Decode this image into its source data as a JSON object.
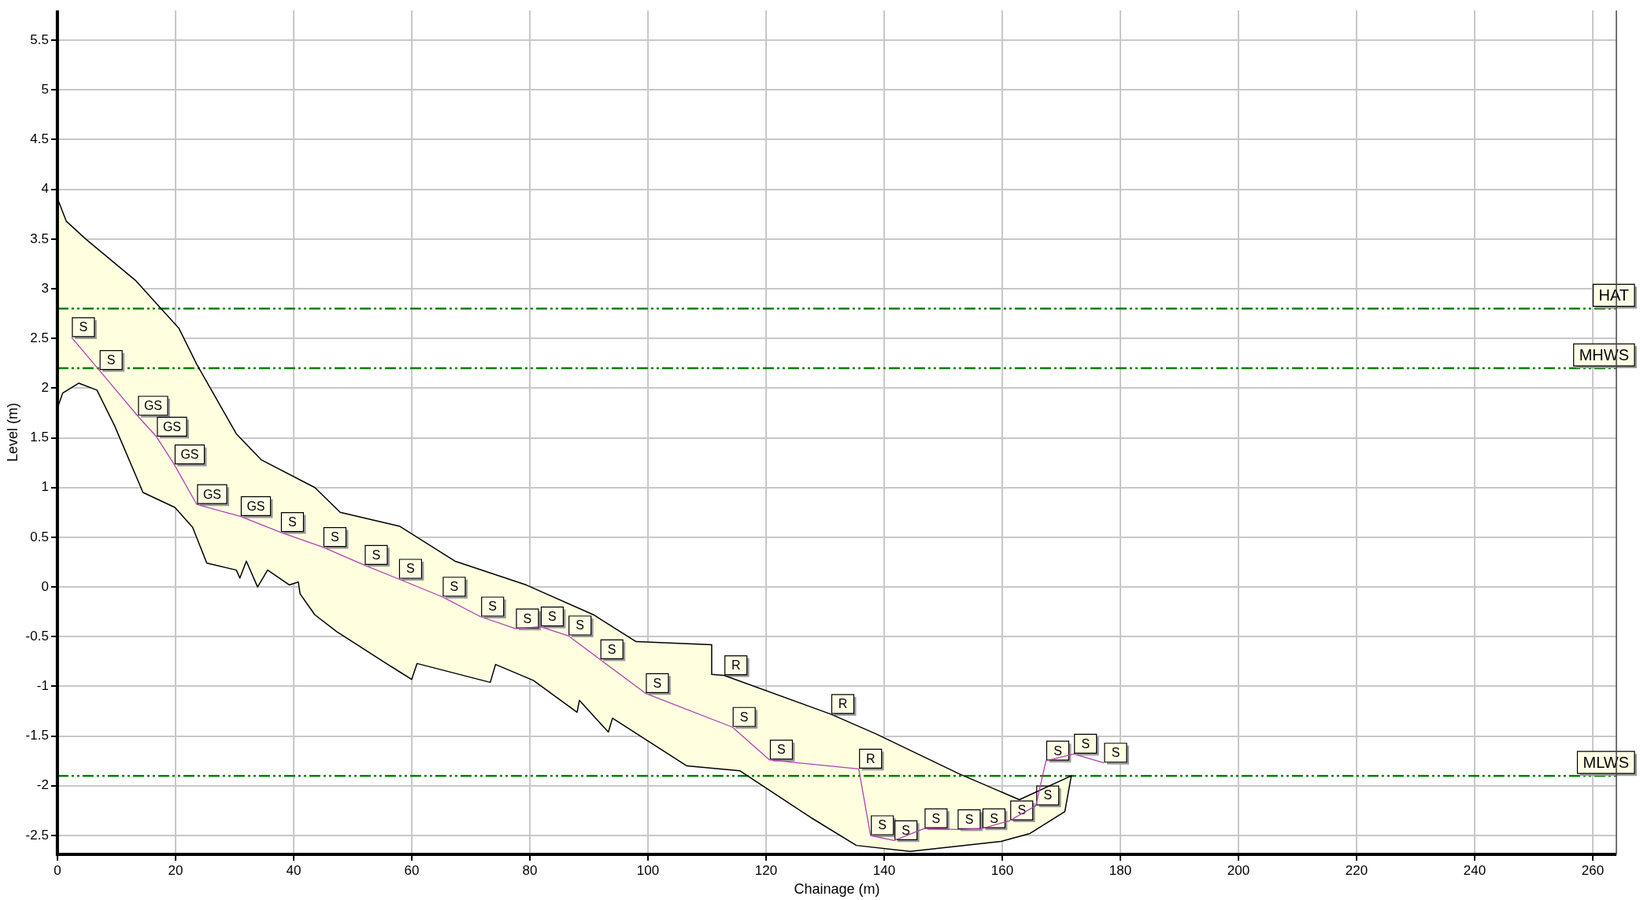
{
  "chart_data": {
    "type": "line",
    "xlabel": "Chainage (m)",
    "ylabel": "Level (m)",
    "xlim": [
      0,
      264
    ],
    "ylim": [
      -2.69,
      5.8
    ],
    "xticks": [
      0,
      20,
      40,
      60,
      80,
      100,
      120,
      140,
      160,
      180,
      200,
      220,
      240,
      260
    ],
    "yticks": [
      -2.5,
      -2,
      -1.5,
      -1,
      -0.5,
      0,
      0.5,
      1,
      1.5,
      2,
      2.5,
      3,
      3.5,
      4,
      4.5,
      5,
      5.5
    ],
    "grid": true,
    "legend": false,
    "series": [
      {
        "type": "area",
        "color": "#ffffe0",
        "x": [
          0,
          1.5,
          4.8,
          13.3,
          20.6,
          23.6,
          30.3,
          34.5,
          43.6,
          47.9,
          58,
          67.3,
          79.4,
          90.8,
          98,
          110.8,
          110.8,
          112.9,
          131,
          138.7,
          152.7,
          162.9,
          171.7,
          170.6,
          164.7,
          159.8,
          144.4,
          135.3,
          127.6,
          115.6,
          106.6,
          94,
          93.3,
          88.4,
          88,
          80.6,
          74.2,
          73.3,
          60.9,
          60,
          55.7,
          47.3,
          43.6,
          41.1,
          40.8,
          39.3,
          35.6,
          33.9,
          32,
          30.9,
          30.3,
          25.3,
          22.9,
          19.9,
          14.5,
          9.7,
          6.7,
          3.6,
          0.9,
          0
        ],
        "values": [
          3.91,
          3.68,
          3.5,
          3.08,
          2.6,
          2.24,
          1.54,
          1.28,
          1.0,
          0.75,
          0.61,
          0.26,
          0.02,
          -0.28,
          -0.55,
          -0.58,
          -0.88,
          -0.89,
          -1.28,
          -1.48,
          -1.88,
          -2.14,
          -1.9,
          -2.26,
          -2.48,
          -2.56,
          -2.66,
          -2.6,
          -2.32,
          -1.85,
          -1.8,
          -1.32,
          -1.46,
          -1.14,
          -1.26,
          -0.94,
          -0.78,
          -0.96,
          -0.77,
          -0.93,
          -0.77,
          -0.45,
          -0.28,
          -0.07,
          0.05,
          0.02,
          0.17,
          0,
          0.26,
          0.09,
          0.17,
          0.24,
          0.6,
          0.8,
          0.95,
          1.62,
          1.98,
          2.05,
          1.95,
          1.8
        ]
      },
      {
        "type": "line",
        "color": "#b040b0",
        "x": [
          2.4,
          7.1,
          13.6,
          16.8,
          19.8,
          23.6,
          31,
          37.8,
          45,
          52,
          57.8,
          65.2,
          71.7,
          77.6,
          81.8,
          86.5,
          91.9,
          99.6,
          114.3,
          120.6,
          135.7,
          137.7,
          141.7,
          146.8,
          152.4,
          156.6,
          161.3,
          165.7,
          167.4,
          172.1,
          177.2
        ],
        "values": [
          2.51,
          2.18,
          1.72,
          1.51,
          1.23,
          0.83,
          0.71,
          0.55,
          0.4,
          0.22,
          0.08,
          -0.1,
          -0.3,
          -0.42,
          -0.4,
          -0.49,
          -0.73,
          -1.07,
          -1.41,
          -1.74,
          -1.83,
          -2.5,
          -2.55,
          -2.43,
          -2.44,
          -2.43,
          -2.35,
          -2.2,
          -1.75,
          -1.68,
          -1.77
        ]
      }
    ],
    "ref_lines": [
      {
        "axis": "y",
        "value": 2.8,
        "label": "HAT",
        "color": "#008000",
        "line_style": "dashed"
      },
      {
        "axis": "y",
        "value": 2.2,
        "label": "MHWS",
        "color": "#008000",
        "line_style": "dashed"
      },
      {
        "axis": "y",
        "value": -1.9,
        "label": "MLWS",
        "color": "#008000",
        "line_style": "dashed"
      }
    ],
    "annotations": [
      {
        "text": "S",
        "x": 2.4,
        "y": 2.51
      },
      {
        "text": "S",
        "x": 7.1,
        "y": 2.18
      },
      {
        "text": "GS",
        "x": 13.6,
        "y": 1.72
      },
      {
        "text": "GS",
        "x": 16.8,
        "y": 1.51
      },
      {
        "text": "GS",
        "x": 19.8,
        "y": 1.23
      },
      {
        "text": "GS",
        "x": 23.6,
        "y": 0.83
      },
      {
        "text": "GS",
        "x": 31,
        "y": 0.71
      },
      {
        "text": "S",
        "x": 37.8,
        "y": 0.55
      },
      {
        "text": "S",
        "x": 45,
        "y": 0.4
      },
      {
        "text": "S",
        "x": 52,
        "y": 0.22
      },
      {
        "text": "S",
        "x": 57.8,
        "y": 0.08
      },
      {
        "text": "S",
        "x": 65.2,
        "y": -0.1
      },
      {
        "text": "S",
        "x": 71.7,
        "y": -0.3
      },
      {
        "text": "S",
        "x": 77.6,
        "y": -0.42
      },
      {
        "text": "S",
        "x": 81.8,
        "y": -0.4
      },
      {
        "text": "S",
        "x": 86.5,
        "y": -0.49
      },
      {
        "text": "S",
        "x": 91.9,
        "y": -0.73
      },
      {
        "text": "S",
        "x": 99.6,
        "y": -1.07
      },
      {
        "text": "R",
        "x": 112.9,
        "y": -0.89
      },
      {
        "text": "S",
        "x": 114.3,
        "y": -1.41
      },
      {
        "text": "S",
        "x": 120.6,
        "y": -1.74
      },
      {
        "text": "R",
        "x": 131,
        "y": -1.28
      },
      {
        "text": "R",
        "x": 135.7,
        "y": -1.83
      },
      {
        "text": "S",
        "x": 137.7,
        "y": -2.5
      },
      {
        "text": "S",
        "x": 141.7,
        "y": -2.55
      },
      {
        "text": "S",
        "x": 146.8,
        "y": -2.43
      },
      {
        "text": "S",
        "x": 152.4,
        "y": -2.44
      },
      {
        "text": "S",
        "x": 156.6,
        "y": -2.43
      },
      {
        "text": "S",
        "x": 161.3,
        "y": -2.35
      },
      {
        "text": "S",
        "x": 165.7,
        "y": -2.2
      },
      {
        "text": "S",
        "x": 167.4,
        "y": -1.75
      },
      {
        "text": "S",
        "x": 172.1,
        "y": -1.68
      },
      {
        "text": "S",
        "x": 177.2,
        "y": -1.77
      }
    ]
  }
}
